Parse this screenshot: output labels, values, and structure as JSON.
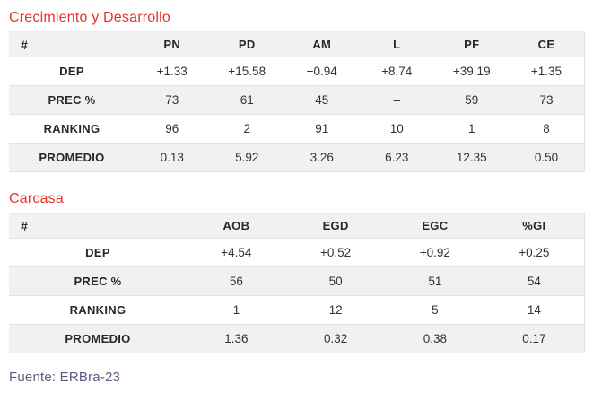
{
  "colors": {
    "heading": "#e7322a",
    "table_text": "#26282e",
    "stripe_bg": "#f1f1f2",
    "border": "#e2e2e6",
    "source_text": "#5a5c7d"
  },
  "sections": [
    {
      "title": "Crecimiento y Desarrollo",
      "table": {
        "corner": "#",
        "columns": [
          "PN",
          "PD",
          "AM",
          "L",
          "PF",
          "CE"
        ],
        "rows": [
          {
            "label": "DEP",
            "values": [
              "+1.33",
              "+15.58",
              "+0.94",
              "+8.74",
              "+39.19",
              "+1.35"
            ]
          },
          {
            "label": "PREC %",
            "values": [
              "73",
              "61",
              "45",
              "–",
              "59",
              "73"
            ]
          },
          {
            "label": "RANKING",
            "values": [
              "96",
              "2",
              "91",
              "10",
              "1",
              "8"
            ]
          },
          {
            "label": "PROMEDIO",
            "values": [
              "0.13",
              "5.92",
              "3.26",
              "6.23",
              "12.35",
              "0.50"
            ]
          }
        ]
      }
    },
    {
      "title": "Carcasa",
      "table": {
        "corner": "#",
        "columns": [
          "AOB",
          "EGD",
          "EGC",
          "%GI"
        ],
        "rows": [
          {
            "label": "DEP",
            "values": [
              "+4.54",
              "+0.52",
              "+0.92",
              "+0.25"
            ]
          },
          {
            "label": "PREC %",
            "values": [
              "56",
              "50",
              "51",
              "54"
            ]
          },
          {
            "label": "RANKING",
            "values": [
              "1",
              "12",
              "5",
              "14"
            ]
          },
          {
            "label": "PROMEDIO",
            "values": [
              "1.36",
              "0.32",
              "0.38",
              "0.17"
            ]
          }
        ]
      }
    }
  ],
  "footer": {
    "source": "Fuente: ERBra-23"
  }
}
